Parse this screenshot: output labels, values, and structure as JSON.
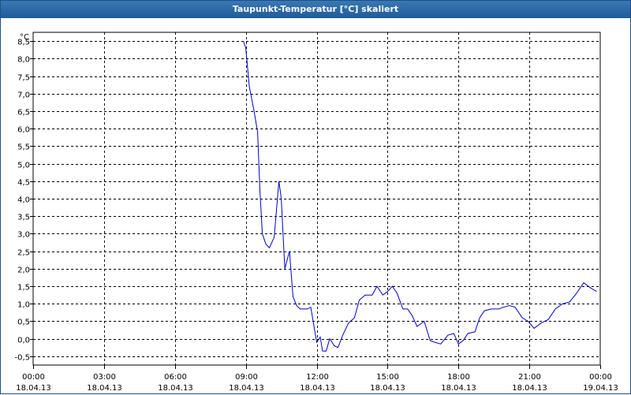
{
  "window": {
    "title": "Taupunkt-Temperatur [°C] skaliert"
  },
  "chart_data": {
    "type": "line",
    "title": "Taupunkt-Temperatur [°C] skaliert",
    "ylabel": "°C",
    "ylim": [
      -0.75,
      8.75
    ],
    "yticks": [
      "8,5",
      "8,0",
      "7,5",
      "7,0",
      "6,5",
      "6,0",
      "5,5",
      "5,0",
      "4,5",
      "4,0",
      "3,5",
      "3,0",
      "2,5",
      "2,0",
      "1,5",
      "1,0",
      "0,5",
      "0,0",
      "-0,5"
    ],
    "ytick_values": [
      8.5,
      8.0,
      7.5,
      7.0,
      6.5,
      6.0,
      5.5,
      5.0,
      4.5,
      4.0,
      3.5,
      3.0,
      2.5,
      2.0,
      1.5,
      1.0,
      0.5,
      0.0,
      -0.5
    ],
    "xticks": [
      {
        "time": "00:00",
        "date": "18.04.13",
        "hour": 0
      },
      {
        "time": "03:00",
        "date": "18.04.13",
        "hour": 3
      },
      {
        "time": "06:00",
        "date": "18.04.13",
        "hour": 6
      },
      {
        "time": "09:00",
        "date": "18.04.13",
        "hour": 9
      },
      {
        "time": "12:00",
        "date": "18.04.13",
        "hour": 12
      },
      {
        "time": "15:00",
        "date": "18.04.13",
        "hour": 15
      },
      {
        "time": "18:00",
        "date": "18.04.13",
        "hour": 18
      },
      {
        "time": "21:00",
        "date": "18.04.13",
        "hour": 21
      },
      {
        "time": "00:00",
        "date": "19.04.13",
        "hour": 24
      }
    ],
    "grid": true,
    "line_color": "#0000cc",
    "series": [
      {
        "x": [
          8.9,
          9.0,
          9.15,
          9.35,
          9.5,
          9.6,
          9.7,
          9.85,
          10.0,
          10.2,
          10.4,
          10.5,
          10.65,
          10.85,
          11.0,
          11.15,
          11.3,
          11.45,
          11.6,
          11.75,
          12.0,
          12.15,
          12.25,
          12.4,
          12.55,
          12.75,
          12.9,
          13.1,
          13.35,
          13.6,
          13.8,
          14.05,
          14.35,
          14.55,
          14.8,
          15.0,
          15.2,
          15.4,
          15.65,
          15.85,
          16.05,
          16.25,
          16.55,
          16.8,
          17.0,
          17.25,
          17.55,
          17.8,
          18.0,
          18.2,
          18.4,
          18.7,
          18.9,
          19.1,
          19.4,
          19.7,
          19.9,
          20.15,
          20.4,
          20.7,
          20.95,
          21.2,
          21.5,
          21.8,
          22.1,
          22.4,
          22.7,
          23.0,
          23.3,
          23.6,
          23.85
        ],
        "y": [
          8.5,
          8.3,
          7.2,
          6.5,
          5.9,
          4.2,
          3.0,
          2.7,
          2.6,
          2.9,
          4.5,
          4.0,
          2.0,
          2.5,
          1.2,
          0.95,
          0.85,
          0.85,
          0.85,
          0.9,
          -0.1,
          0.05,
          -0.35,
          -0.35,
          0.0,
          -0.2,
          -0.25,
          0.1,
          0.45,
          0.6,
          1.1,
          1.25,
          1.25,
          1.5,
          1.25,
          1.35,
          1.5,
          1.3,
          0.85,
          0.85,
          0.65,
          0.35,
          0.5,
          -0.05,
          -0.1,
          -0.15,
          0.1,
          0.15,
          -0.15,
          -0.05,
          0.15,
          0.2,
          0.6,
          0.8,
          0.85,
          0.85,
          0.9,
          0.95,
          0.9,
          0.6,
          0.5,
          0.3,
          0.45,
          0.55,
          0.85,
          1.0,
          1.05,
          1.3,
          1.6,
          1.45,
          1.35
        ]
      }
    ]
  }
}
